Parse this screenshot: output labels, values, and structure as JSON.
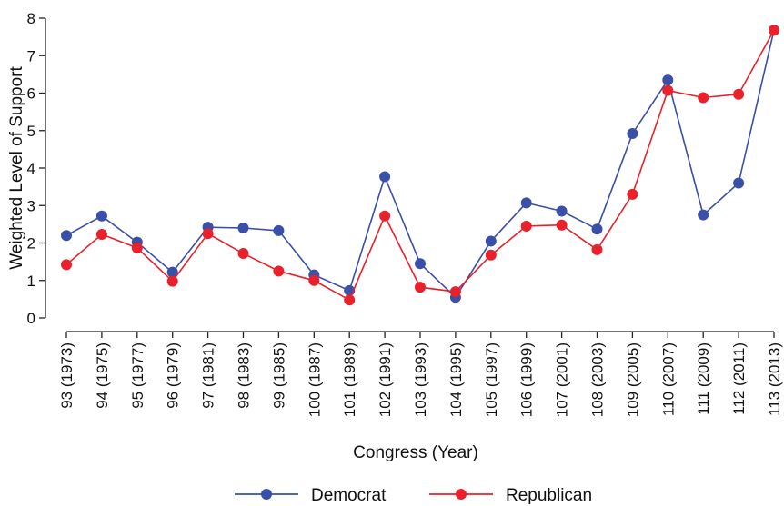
{
  "chart_data": {
    "type": "line",
    "title": "",
    "xlabel": "Congress (Year)",
    "ylabel": "Weighted Level of Support",
    "ylim": [
      0,
      8
    ],
    "yticks": [
      0,
      1,
      2,
      3,
      4,
      5,
      6,
      7,
      8
    ],
    "grid": false,
    "legend_position": "bottom",
    "categories": [
      "93 (1973)",
      "94 (1975)",
      "95 (1977)",
      "96 (1979)",
      "97 (1981)",
      "98 (1983)",
      "99 (1985)",
      "100 (1987)",
      "101 (1989)",
      "102 (1991)",
      "103 (1993)",
      "104 (1995)",
      "105 (1997)",
      "106 (1999)",
      "107 (2001)",
      "108 (2003)",
      "109 (2005)",
      "110 (2007)",
      "111 (2009)",
      "112 (2011)",
      "113 (2013)"
    ],
    "series": [
      {
        "name": "Democrat",
        "color": "#3a4fa8",
        "values": [
          2.2,
          2.72,
          2.02,
          1.22,
          2.42,
          2.4,
          2.33,
          1.15,
          0.73,
          3.77,
          1.45,
          0.55,
          2.05,
          3.07,
          2.85,
          2.37,
          4.92,
          6.35,
          2.75,
          3.6,
          7.68
        ]
      },
      {
        "name": "Republican",
        "color": "#e8212a",
        "values": [
          1.42,
          2.23,
          1.87,
          0.98,
          2.25,
          1.72,
          1.25,
          1.0,
          0.48,
          2.72,
          0.82,
          0.7,
          1.68,
          2.45,
          2.48,
          1.82,
          3.3,
          6.07,
          5.88,
          5.97,
          7.68
        ]
      }
    ]
  }
}
